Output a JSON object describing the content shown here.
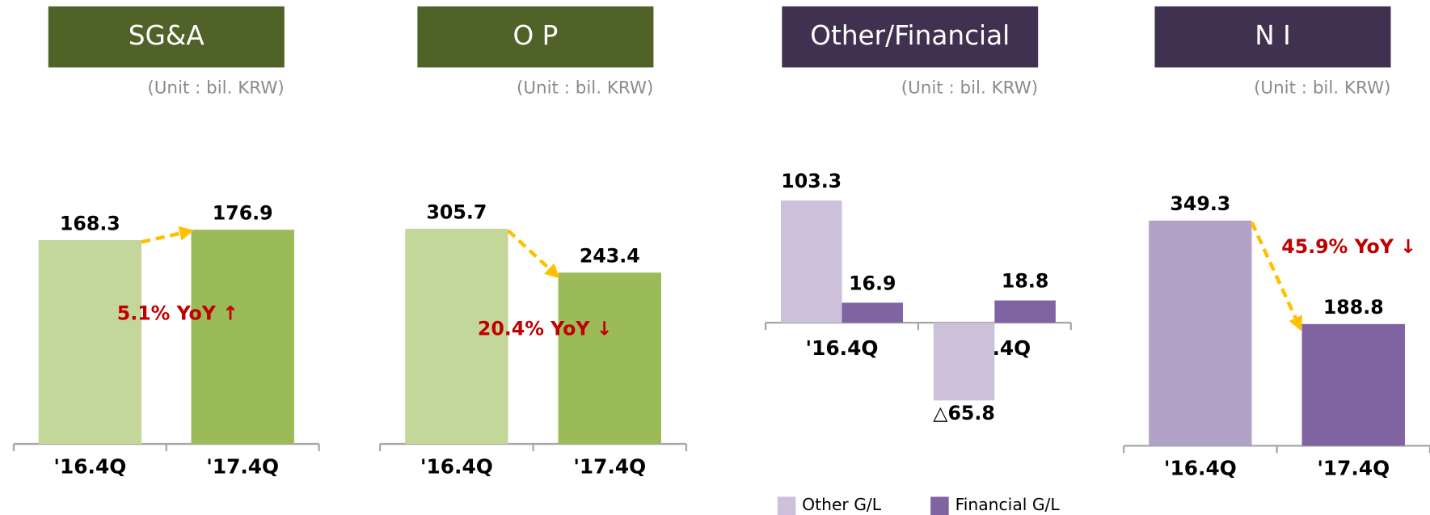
{
  "chart_data": [
    {
      "type": "bar",
      "title": "SG&A",
      "subtitle": "(Unit : bil. KRW)",
      "header_color": "#4f6228",
      "categories": [
        "'16.4Q",
        "'17.4Q"
      ],
      "values": [
        168.3,
        176.9
      ],
      "colors": [
        "#c4d79b",
        "#9bbb59"
      ],
      "annotation": "5.1% YoY ↑"
    },
    {
      "type": "bar",
      "title": "O P",
      "subtitle": "(Unit : bil. KRW)",
      "header_color": "#4f6228",
      "categories": [
        "'16.4Q",
        "'17.4Q"
      ],
      "values": [
        305.7,
        243.4
      ],
      "colors": [
        "#c4d79b",
        "#9bbb59"
      ],
      "annotation": "20.4% YoY ↓"
    },
    {
      "type": "grouped_bar",
      "title": "Other/Financial",
      "subtitle": "(Unit : bil. KRW)",
      "header_color": "#403151",
      "categories": [
        "'16.4Q",
        "'17.4Q"
      ],
      "series": [
        {
          "name": "Other G/L",
          "color": "#ccc0da",
          "values": [
            103.3,
            -65.8
          ],
          "value_labels": [
            "103.3",
            "△65.8"
          ]
        },
        {
          "name": "Financial G/L",
          "color": "#8064a2",
          "values": [
            16.9,
            18.8
          ]
        }
      ]
    },
    {
      "type": "bar",
      "title": "N I",
      "subtitle": "(Unit : bil. KRW)",
      "header_color": "#403151",
      "categories": [
        "'16.4Q",
        "'17.4Q"
      ],
      "values": [
        349.3,
        188.8
      ],
      "colors": [
        "#b3a2c7",
        "#8064a2"
      ],
      "annotation": "45.9% YoY ↓"
    }
  ]
}
